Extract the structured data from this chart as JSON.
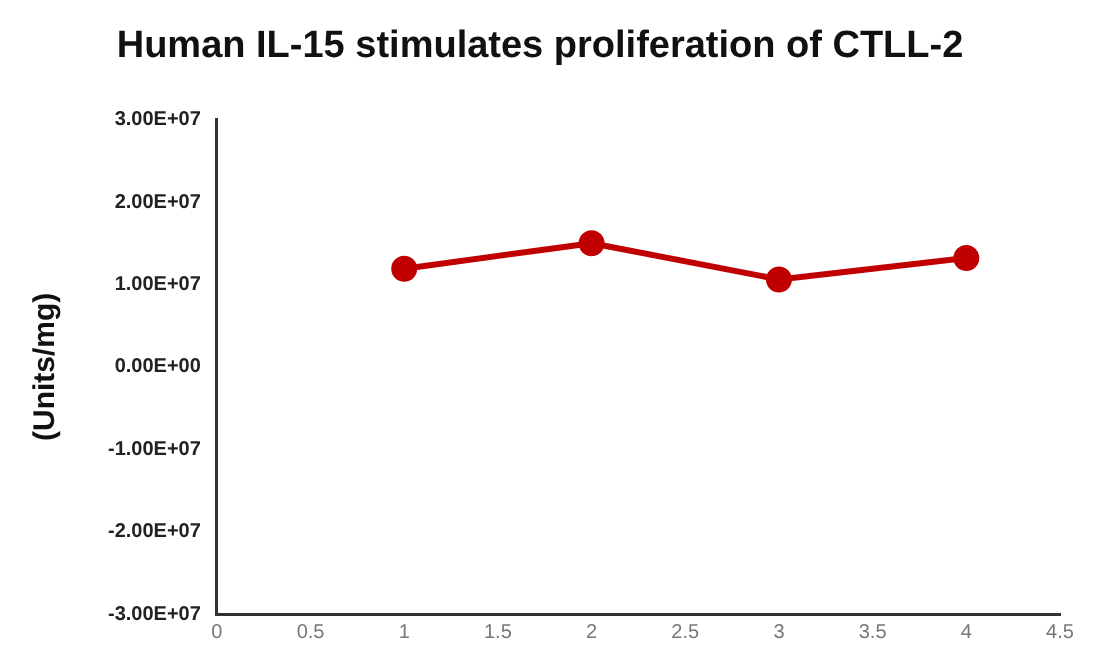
{
  "chart_data": {
    "type": "line",
    "title": "Human IL-15 stimulates proliferation of CTLL-2",
    "ylabel": "(Units/mg)",
    "x": [
      1,
      2,
      3,
      4
    ],
    "series": [
      {
        "color": "#c00000",
        "values": [
          11900000,
          15000000,
          10600000,
          13200000
        ]
      }
    ],
    "xlim": [
      0,
      4.5
    ],
    "xticks": [
      0,
      0.5,
      1,
      1.5,
      2,
      2.5,
      3,
      3.5,
      4,
      4.5
    ],
    "ylim": [
      -30000000,
      30000000
    ],
    "yticks": [
      {
        "value": -30000000,
        "label": "-3.00E+07"
      },
      {
        "value": -20000000,
        "label": "-2.00E+07"
      },
      {
        "value": -10000000,
        "label": "-1.00E+07"
      },
      {
        "value": 0,
        "label": "0.00E+00"
      },
      {
        "value": 10000000,
        "label": "1.00E+07"
      },
      {
        "value": 20000000,
        "label": "2.00E+07"
      },
      {
        "value": 30000000,
        "label": "3.00E+07"
      }
    ],
    "grid": false,
    "legend": false,
    "marker": "circle",
    "line_style": "solid"
  }
}
